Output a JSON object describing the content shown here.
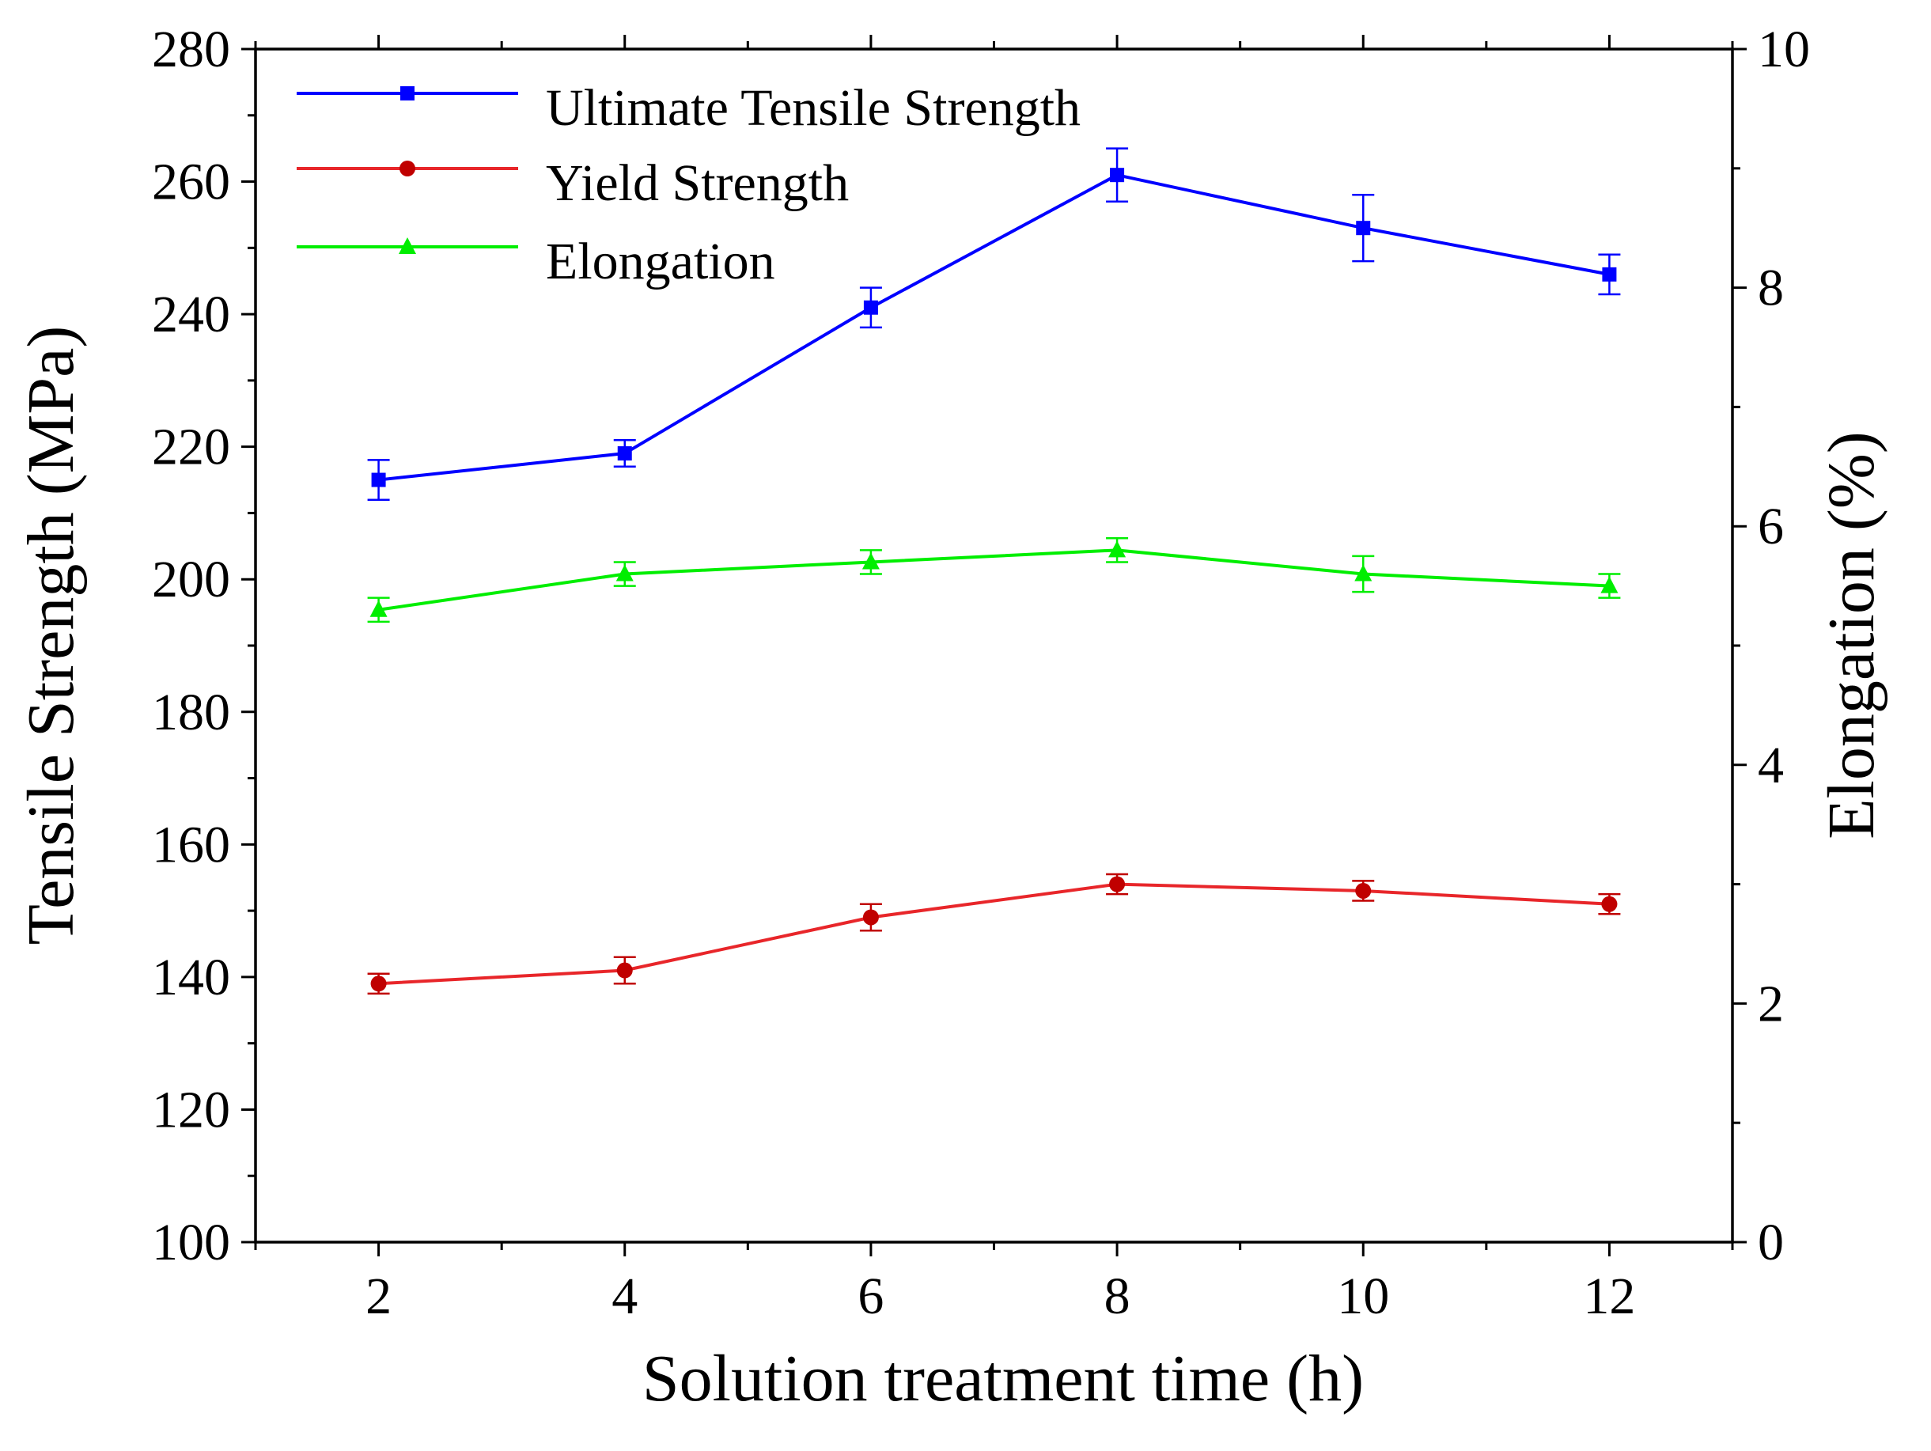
{
  "chart_data": {
    "type": "line",
    "title": "",
    "xlabel": "Solution treatment time (h)",
    "ylabel": "Tensile Strength (MPa)",
    "y2label": "Elongation (%)",
    "x": [
      2,
      4,
      6,
      8,
      10,
      12
    ],
    "xlim": [
      1,
      13
    ],
    "xticks": [
      2,
      4,
      6,
      8,
      10,
      12
    ],
    "ylim": [
      100,
      280
    ],
    "yticks": [
      100,
      120,
      140,
      160,
      180,
      200,
      220,
      240,
      260,
      280
    ],
    "y2lim": [
      0,
      10
    ],
    "y2ticks": [
      0,
      2,
      4,
      6,
      8,
      10
    ],
    "grid": false,
    "legend_position": "top-left",
    "series": [
      {
        "name": "Ultimate Tensile Strength",
        "axis": "left",
        "color": "#0000ff",
        "marker": "square",
        "values": [
          215,
          219,
          241,
          261,
          253,
          246
        ],
        "errors": [
          3,
          2,
          3,
          4,
          5,
          3
        ]
      },
      {
        "name": "Yield Strength",
        "axis": "left",
        "color": "#e8262a",
        "marker_color": "#c00000",
        "marker": "circle",
        "values": [
          139,
          141,
          149,
          154,
          153,
          151
        ],
        "errors": [
          1.5,
          2,
          2,
          1.5,
          1.5,
          1.5
        ]
      },
      {
        "name": "Elongation",
        "axis": "right",
        "color": "#00ee00",
        "marker": "triangle",
        "values": [
          5.3,
          5.6,
          5.7,
          5.8,
          5.6,
          5.5
        ],
        "errors": [
          0.1,
          0.1,
          0.1,
          0.1,
          0.15,
          0.1
        ]
      }
    ]
  }
}
